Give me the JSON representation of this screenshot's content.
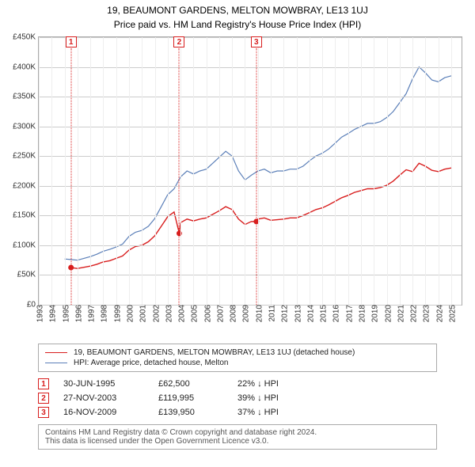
{
  "title": "19, BEAUMONT GARDENS, MELTON MOWBRAY, LE13 1UJ",
  "subtitle": "Price paid vs. HM Land Registry's House Price Index (HPI)",
  "chart": {
    "type": "line",
    "background_color": "#ffffff",
    "grid_color_major": "#cccccc",
    "grid_color_minor": "#eeeeee",
    "axis_color": "#aaaaaa",
    "ylim": [
      0,
      450000
    ],
    "y_ticks": [
      0,
      50000,
      100000,
      150000,
      200000,
      250000,
      300000,
      350000,
      400000,
      450000
    ],
    "y_tick_labels": [
      "£0",
      "£50K",
      "£100K",
      "£150K",
      "£200K",
      "£250K",
      "£300K",
      "£350K",
      "£400K",
      "£450K"
    ],
    "xlim": [
      1993,
      2025.8
    ],
    "x_ticks": [
      1993,
      1994,
      1995,
      1996,
      1997,
      1998,
      1999,
      2000,
      2001,
      2002,
      2003,
      2004,
      2005,
      2006,
      2007,
      2008,
      2009,
      2010,
      2011,
      2012,
      2013,
      2014,
      2015,
      2016,
      2017,
      2018,
      2019,
      2020,
      2021,
      2022,
      2023,
      2024,
      2025
    ],
    "x_tick_labels": [
      "1993",
      "1994",
      "1995",
      "1996",
      "1997",
      "1998",
      "1999",
      "2000",
      "2001",
      "2002",
      "2003",
      "2004",
      "2005",
      "2006",
      "2007",
      "2008",
      "2009",
      "2010",
      "2011",
      "2012",
      "2013",
      "2014",
      "2015",
      "2016",
      "2017",
      "2018",
      "2019",
      "2020",
      "2021",
      "2022",
      "2023",
      "2024",
      "2025"
    ],
    "label_fontsize": 10,
    "series": [
      {
        "name": "hpi",
        "color": "#5b7fb8",
        "line_width": 1.2,
        "points": [
          [
            1995.0,
            77000
          ],
          [
            1995.5,
            76000
          ],
          [
            1996.0,
            75000
          ],
          [
            1996.5,
            78000
          ],
          [
            1997.0,
            81000
          ],
          [
            1997.5,
            85000
          ],
          [
            1998.0,
            90000
          ],
          [
            1998.5,
            93000
          ],
          [
            1999.0,
            97000
          ],
          [
            1999.5,
            102000
          ],
          [
            2000.0,
            115000
          ],
          [
            2000.5,
            122000
          ],
          [
            2001.0,
            125000
          ],
          [
            2001.5,
            132000
          ],
          [
            2002.0,
            145000
          ],
          [
            2002.5,
            165000
          ],
          [
            2003.0,
            185000
          ],
          [
            2003.5,
            195000
          ],
          [
            2004.0,
            215000
          ],
          [
            2004.5,
            225000
          ],
          [
            2005.0,
            220000
          ],
          [
            2005.5,
            225000
          ],
          [
            2006.0,
            228000
          ],
          [
            2006.5,
            238000
          ],
          [
            2007.0,
            248000
          ],
          [
            2007.5,
            258000
          ],
          [
            2008.0,
            250000
          ],
          [
            2008.5,
            225000
          ],
          [
            2009.0,
            210000
          ],
          [
            2009.5,
            218000
          ],
          [
            2010.0,
            225000
          ],
          [
            2010.5,
            228000
          ],
          [
            2011.0,
            222000
          ],
          [
            2011.5,
            225000
          ],
          [
            2012.0,
            225000
          ],
          [
            2012.5,
            228000
          ],
          [
            2013.0,
            228000
          ],
          [
            2013.5,
            233000
          ],
          [
            2014.0,
            242000
          ],
          [
            2014.5,
            250000
          ],
          [
            2015.0,
            255000
          ],
          [
            2015.5,
            262000
          ],
          [
            2016.0,
            272000
          ],
          [
            2016.5,
            282000
          ],
          [
            2017.0,
            288000
          ],
          [
            2017.5,
            295000
          ],
          [
            2018.0,
            300000
          ],
          [
            2018.5,
            305000
          ],
          [
            2019.0,
            305000
          ],
          [
            2019.5,
            308000
          ],
          [
            2020.0,
            315000
          ],
          [
            2020.5,
            325000
          ],
          [
            2021.0,
            340000
          ],
          [
            2021.5,
            355000
          ],
          [
            2022.0,
            380000
          ],
          [
            2022.5,
            400000
          ],
          [
            2023.0,
            390000
          ],
          [
            2023.5,
            378000
          ],
          [
            2024.0,
            375000
          ],
          [
            2024.5,
            382000
          ],
          [
            2025.0,
            385000
          ]
        ]
      },
      {
        "name": "price_paid",
        "color": "#d81e1e",
        "line_width": 1.4,
        "points": [
          [
            1995.5,
            62500
          ],
          [
            1996.0,
            61000
          ],
          [
            1996.5,
            63000
          ],
          [
            1997.0,
            65000
          ],
          [
            1997.5,
            68000
          ],
          [
            1998.0,
            72000
          ],
          [
            1998.5,
            74000
          ],
          [
            1999.0,
            78000
          ],
          [
            1999.5,
            82000
          ],
          [
            2000.0,
            92000
          ],
          [
            2000.5,
            98000
          ],
          [
            2001.0,
            100000
          ],
          [
            2001.5,
            106000
          ],
          [
            2002.0,
            116000
          ],
          [
            2002.5,
            132000
          ],
          [
            2003.0,
            148000
          ],
          [
            2003.5,
            156000
          ],
          [
            2003.9,
            119995
          ],
          [
            2004.0,
            138000
          ],
          [
            2004.5,
            144000
          ],
          [
            2005.0,
            141000
          ],
          [
            2005.5,
            144000
          ],
          [
            2006.0,
            146000
          ],
          [
            2006.5,
            152000
          ],
          [
            2007.0,
            158000
          ],
          [
            2007.5,
            165000
          ],
          [
            2008.0,
            160000
          ],
          [
            2008.5,
            144000
          ],
          [
            2009.0,
            135000
          ],
          [
            2009.5,
            140000
          ],
          [
            2009.88,
            139950
          ],
          [
            2010.0,
            144000
          ],
          [
            2010.5,
            146000
          ],
          [
            2011.0,
            142000
          ],
          [
            2011.5,
            143000
          ],
          [
            2012.0,
            144000
          ],
          [
            2012.5,
            146000
          ],
          [
            2013.0,
            146000
          ],
          [
            2013.5,
            150000
          ],
          [
            2014.0,
            155000
          ],
          [
            2014.5,
            160000
          ],
          [
            2015.0,
            163000
          ],
          [
            2015.5,
            168000
          ],
          [
            2016.0,
            174000
          ],
          [
            2016.5,
            180000
          ],
          [
            2017.0,
            184000
          ],
          [
            2017.5,
            189000
          ],
          [
            2018.0,
            192000
          ],
          [
            2018.5,
            195000
          ],
          [
            2019.0,
            195000
          ],
          [
            2019.5,
            197000
          ],
          [
            2020.0,
            201000
          ],
          [
            2020.5,
            208000
          ],
          [
            2021.0,
            218000
          ],
          [
            2021.5,
            227000
          ],
          [
            2022.0,
            224000
          ],
          [
            2022.5,
            238000
          ],
          [
            2023.0,
            233000
          ],
          [
            2023.5,
            226000
          ],
          [
            2024.0,
            224000
          ],
          [
            2024.5,
            228000
          ],
          [
            2025.0,
            230000
          ]
        ]
      }
    ],
    "sale_markers": [
      {
        "n": "1",
        "year": 1995.5,
        "color": "#d81e1e",
        "dot_y": 62500
      },
      {
        "n": "2",
        "year": 2003.9,
        "color": "#d81e1e",
        "dot_y": 119995
      },
      {
        "n": "3",
        "year": 2009.88,
        "color": "#d81e1e",
        "dot_y": 139950
      }
    ],
    "marker_dot_radius": 3.5
  },
  "legend": {
    "items": [
      {
        "color": "#d81e1e",
        "width": 1.8,
        "label": "19, BEAUMONT GARDENS, MELTON MOWBRAY, LE13 1UJ (detached house)"
      },
      {
        "color": "#5b7fb8",
        "width": 1.4,
        "label": "HPI: Average price, detached house, Melton"
      }
    ]
  },
  "sales": [
    {
      "n": "1",
      "color": "#d81e1e",
      "date": "30-JUN-1995",
      "price": "£62,500",
      "diff": "22% ↓ HPI"
    },
    {
      "n": "2",
      "color": "#d81e1e",
      "date": "27-NOV-2003",
      "price": "£119,995",
      "diff": "39% ↓ HPI"
    },
    {
      "n": "3",
      "color": "#d81e1e",
      "date": "16-NOV-2009",
      "price": "£139,950",
      "diff": "37% ↓ HPI"
    }
  ],
  "footer": {
    "line1": "Contains HM Land Registry data © Crown copyright and database right 2024.",
    "line2": "This data is licensed under the Open Government Licence v3.0."
  }
}
